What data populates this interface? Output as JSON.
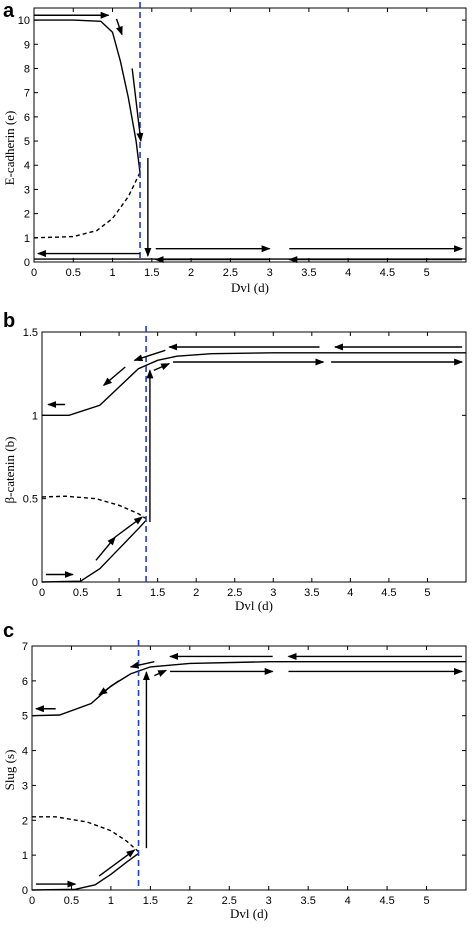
{
  "chart_data": [
    {
      "panel": "a",
      "type": "line",
      "xlabel": "Dvl (d)",
      "ylabel": "E-cadherin (e)",
      "xlim": [
        0,
        5.5
      ],
      "ylim": [
        0,
        10.5
      ],
      "xticks": [
        0,
        0.5,
        1,
        1.5,
        2,
        2.5,
        3,
        3.5,
        4,
        4.5,
        5
      ],
      "yticks": [
        0,
        1,
        2,
        3,
        4,
        5,
        6,
        7,
        8,
        9,
        10
      ],
      "threshold_x": 1.35,
      "series": [
        {
          "style": "solid",
          "points": [
            [
              0,
              10.0
            ],
            [
              0.5,
              10.0
            ],
            [
              0.85,
              9.95
            ],
            [
              1.0,
              9.5
            ],
            [
              1.1,
              8.3
            ],
            [
              1.2,
              6.8
            ],
            [
              1.3,
              5.0
            ],
            [
              1.35,
              3.7
            ]
          ]
        },
        {
          "style": "dashed",
          "points": [
            [
              0,
              1.0
            ],
            [
              0.5,
              1.05
            ],
            [
              0.8,
              1.3
            ],
            [
              1.0,
              1.8
            ],
            [
              1.2,
              2.7
            ],
            [
              1.35,
              3.7
            ]
          ]
        },
        {
          "style": "solid",
          "points": [
            [
              0,
              0.12
            ],
            [
              1.0,
              0.12
            ],
            [
              1.5,
              0.12
            ],
            [
              2.5,
              0.12
            ],
            [
              3.5,
              0.12
            ],
            [
              4.5,
              0.12
            ],
            [
              5.5,
              0.12
            ]
          ]
        }
      ],
      "arrows": [
        [
          [
            0,
            10.2
          ],
          [
            0.95,
            10.2
          ]
        ],
        [
          [
            1.05,
            10.05
          ],
          [
            1.12,
            9.4
          ]
        ],
        [
          [
            1.25,
            8.0
          ],
          [
            1.36,
            5.0
          ]
        ],
        [
          [
            1.45,
            4.3
          ],
          [
            1.45,
            0.25
          ]
        ],
        [
          [
            1.35,
            0.35
          ],
          [
            0.05,
            0.35
          ]
        ],
        [
          [
            1.55,
            0.55
          ],
          [
            3.0,
            0.55
          ]
        ],
        [
          [
            3.25,
            0.55
          ],
          [
            5.45,
            0.55
          ]
        ],
        [
          [
            3.0,
            0.1
          ],
          [
            1.55,
            0.1
          ]
        ],
        [
          [
            5.45,
            0.1
          ],
          [
            3.25,
            0.1
          ]
        ]
      ]
    },
    {
      "panel": "b",
      "type": "line",
      "xlabel": "Dvl (d)",
      "ylabel": "β-catenin (b)",
      "xlim": [
        0,
        5.5
      ],
      "ylim": [
        0,
        1.5
      ],
      "xticks": [
        0,
        0.5,
        1,
        1.5,
        2,
        2.5,
        3,
        3.5,
        4,
        4.5,
        5
      ],
      "yticks": [
        0,
        0.5,
        1,
        1.5
      ],
      "threshold_x": 1.35,
      "series": [
        {
          "style": "solid",
          "points": [
            [
              0,
              1.0
            ],
            [
              0.35,
              1.0
            ],
            [
              0.75,
              1.06
            ],
            [
              1.0,
              1.17
            ],
            [
              1.25,
              1.28
            ],
            [
              1.5,
              1.33
            ],
            [
              1.75,
              1.355
            ],
            [
              2.2,
              1.37
            ],
            [
              3.0,
              1.375
            ],
            [
              5.5,
              1.375
            ]
          ]
        },
        {
          "style": "dashed",
          "points": [
            [
              0,
              0.51
            ],
            [
              0.3,
              0.515
            ],
            [
              0.7,
              0.5
            ],
            [
              1.0,
              0.46
            ],
            [
              1.25,
              0.41
            ],
            [
              1.35,
              0.38
            ]
          ]
        },
        {
          "style": "solid",
          "points": [
            [
              0,
              0.0
            ],
            [
              0.5,
              0.005
            ],
            [
              0.75,
              0.08
            ],
            [
              1.0,
              0.2
            ],
            [
              1.25,
              0.32
            ],
            [
              1.35,
              0.37
            ]
          ]
        }
      ],
      "arrows": [
        [
          [
            0.05,
            0.045
          ],
          [
            0.4,
            0.045
          ]
        ],
        [
          [
            0.7,
            0.13
          ],
          [
            0.95,
            0.27
          ]
        ],
        [
          [
            0.95,
            0.27
          ],
          [
            1.3,
            0.39
          ]
        ],
        [
          [
            1.4,
            0.36
          ],
          [
            1.4,
            1.27
          ]
        ],
        [
          [
            1.45,
            1.27
          ],
          [
            1.65,
            1.31
          ]
        ],
        [
          [
            1.7,
            1.32
          ],
          [
            3.65,
            1.32
          ]
        ],
        [
          [
            3.75,
            1.32
          ],
          [
            5.45,
            1.32
          ]
        ],
        [
          [
            5.45,
            1.41
          ],
          [
            3.8,
            1.41
          ]
        ],
        [
          [
            3.6,
            1.41
          ],
          [
            1.65,
            1.41
          ]
        ],
        [
          [
            1.6,
            1.39
          ],
          [
            1.2,
            1.33
          ]
        ],
        [
          [
            1.08,
            1.29
          ],
          [
            0.8,
            1.18
          ]
        ],
        [
          [
            0.3,
            1.065
          ],
          [
            0.08,
            1.065
          ]
        ]
      ]
    },
    {
      "panel": "c",
      "type": "line",
      "xlabel": "Dvl (d)",
      "ylabel": "Slug (s)",
      "xlim": [
        0,
        5.5
      ],
      "ylim": [
        0,
        7
      ],
      "xticks": [
        0,
        0.5,
        1,
        1.5,
        2,
        2.5,
        3,
        3.5,
        4,
        4.5,
        5
      ],
      "yticks": [
        0,
        1,
        2,
        3,
        4,
        5,
        6,
        7
      ],
      "threshold_x": 1.35,
      "series": [
        {
          "style": "solid",
          "points": [
            [
              0,
              5.0
            ],
            [
              0.35,
              5.02
            ],
            [
              0.75,
              5.35
            ],
            [
              1.0,
              5.85
            ],
            [
              1.25,
              6.2
            ],
            [
              1.5,
              6.4
            ],
            [
              2.0,
              6.5
            ],
            [
              3.0,
              6.55
            ],
            [
              5.5,
              6.55
            ]
          ]
        },
        {
          "style": "dashed",
          "points": [
            [
              0,
              2.1
            ],
            [
              0.3,
              2.1
            ],
            [
              0.7,
              1.95
            ],
            [
              1.0,
              1.7
            ],
            [
              1.2,
              1.4
            ],
            [
              1.35,
              1.1
            ]
          ]
        },
        {
          "style": "solid",
          "points": [
            [
              0,
              0.0
            ],
            [
              0.55,
              0.02
            ],
            [
              0.8,
              0.15
            ],
            [
              1.0,
              0.45
            ],
            [
              1.2,
              0.8
            ],
            [
              1.35,
              1.05
            ]
          ]
        }
      ],
      "arrows": [
        [
          [
            0.05,
            0.17
          ],
          [
            0.55,
            0.17
          ]
        ],
        [
          [
            0.85,
            0.4
          ],
          [
            1.3,
            1.15
          ]
        ],
        [
          [
            1.45,
            1.2
          ],
          [
            1.45,
            6.25
          ]
        ],
        [
          [
            1.55,
            6.15
          ],
          [
            1.7,
            6.3
          ]
        ],
        [
          [
            1.75,
            6.27
          ],
          [
            3.05,
            6.27
          ]
        ],
        [
          [
            3.25,
            6.27
          ],
          [
            5.45,
            6.27
          ]
        ],
        [
          [
            5.45,
            6.7
          ],
          [
            3.25,
            6.7
          ]
        ],
        [
          [
            3.05,
            6.7
          ],
          [
            1.75,
            6.7
          ]
        ],
        [
          [
            1.55,
            6.55
          ],
          [
            1.25,
            6.4
          ]
        ],
        [
          [
            1.1,
            6.0
          ],
          [
            0.85,
            5.6
          ]
        ],
        [
          [
            0.3,
            5.2
          ],
          [
            0.05,
            5.2
          ]
        ]
      ]
    }
  ],
  "panels": [
    {
      "letter": "a"
    },
    {
      "letter": "b"
    },
    {
      "letter": "c"
    }
  ],
  "colors": {
    "curve": "#000000",
    "threshold": "#1f3ad6",
    "axis": "#000000"
  }
}
